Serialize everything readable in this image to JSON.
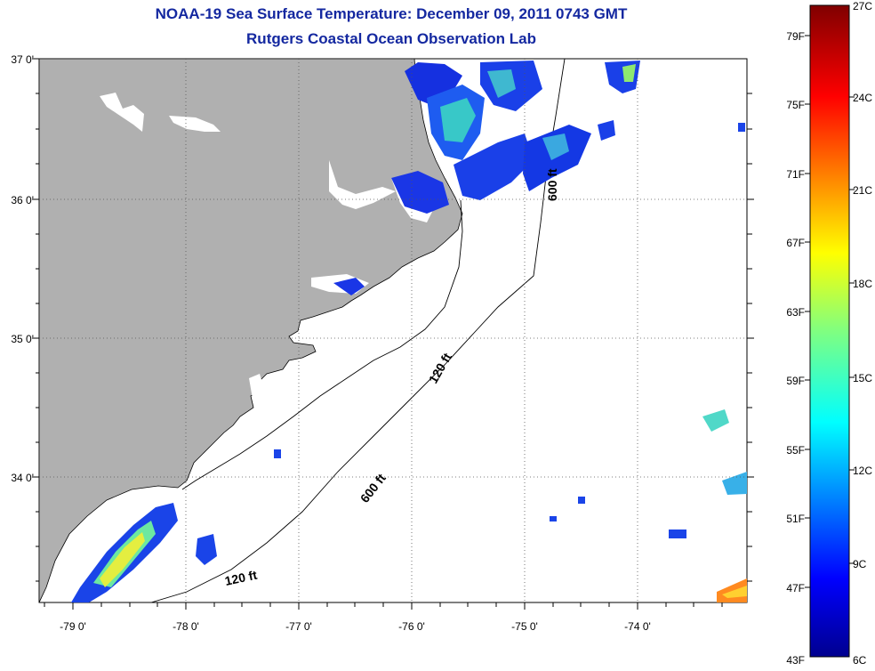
{
  "title": "NOAA-19 Sea Surface Temperature:  December 09, 2011 0743 GMT",
  "subtitle": "Rutgers Coastal Ocean Observation Lab",
  "lat_labels": [
    "37 0'",
    "36 0'",
    "35 0'",
    "34 0'"
  ],
  "lon_labels": [
    "-79 0'",
    "-78 0'",
    "-77 0'",
    "-76 0'",
    "-75 0'",
    "-74 0'"
  ],
  "contours": {
    "c120_upper": "120 ft",
    "c600_upper": "600 ft",
    "c600_lower": "600 ft",
    "c120_lower": "120 ft"
  },
  "colorbar": {
    "fahrenheit": [
      "79F",
      "75F",
      "71F",
      "67F",
      "63F",
      "59F",
      "55F",
      "51F",
      "47F",
      "43F"
    ],
    "celsius": [
      "27C",
      "24C",
      "21C",
      "18C",
      "15C",
      "12C",
      "9C",
      "6C"
    ]
  },
  "colors": {
    "title": "#1428a0",
    "land": "#b0b0b0",
    "ocean": "#ffffff"
  },
  "chart_data": {
    "type": "heatmap",
    "title": "NOAA-19 Sea Surface Temperature:  December 09, 2011 0743 GMT",
    "subtitle": "Rutgers Coastal Ocean Observation Lab",
    "lat_range": [
      33.25,
      37.0
    ],
    "lon_range": [
      -79.3,
      -73.0
    ],
    "colorbar_range_c": [
      6,
      27
    ],
    "colorbar_range_f": [
      43,
      81
    ]
  }
}
